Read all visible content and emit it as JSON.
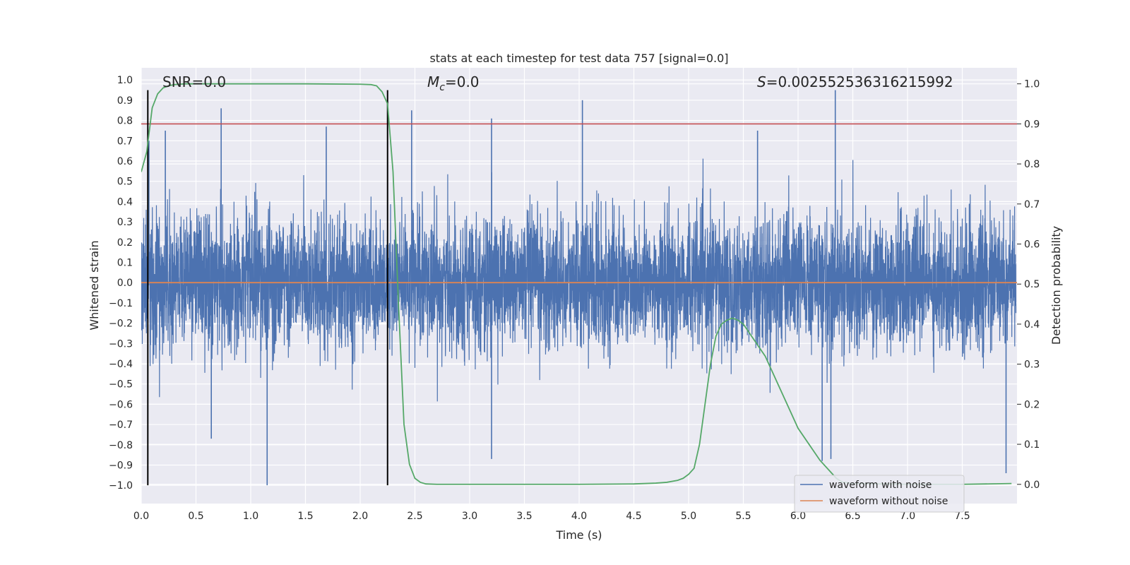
{
  "chart_data": {
    "type": "line",
    "title": "stats at each timestep for test data 757 [signal=0.0]",
    "xlabel": "Time (s)",
    "ylabel_left": "Whitened strain",
    "ylabel_right": "Detection probability",
    "xlim": [
      0.0,
      8.0
    ],
    "ylim_left": [
      -1.09,
      1.06
    ],
    "ylim_right": [
      -0.048,
      1.04
    ],
    "x_ticks": [
      "0.0",
      "0.5",
      "1.0",
      "1.5",
      "2.0",
      "2.5",
      "3.0",
      "3.5",
      "4.0",
      "4.5",
      "5.0",
      "5.5",
      "6.0",
      "6.5",
      "7.0",
      "7.5"
    ],
    "x_tick_values": [
      0.0,
      0.5,
      1.0,
      1.5,
      2.0,
      2.5,
      3.0,
      3.5,
      4.0,
      4.5,
      5.0,
      5.5,
      6.0,
      6.5,
      7.0,
      7.5
    ],
    "y_left_ticks": [
      "1.0",
      "0.9",
      "0.8",
      "0.7",
      "0.6",
      "0.5",
      "0.4",
      "0.3",
      "0.2",
      "0.1",
      "0.0",
      "−0.1",
      "−0.2",
      "−0.3",
      "−0.4",
      "−0.5",
      "−0.6",
      "−0.7",
      "−0.8",
      "−0.9",
      "−1.0"
    ],
    "y_left_tick_values": [
      1.0,
      0.9,
      0.8,
      0.7,
      0.6,
      0.5,
      0.4,
      0.3,
      0.2,
      0.1,
      0.0,
      -0.1,
      -0.2,
      -0.3,
      -0.4,
      -0.5,
      -0.6,
      -0.7,
      -0.8,
      -0.9,
      -1.0
    ],
    "y_right_ticks": [
      "1.0",
      "0.9",
      "0.8",
      "0.7",
      "0.6",
      "0.5",
      "0.4",
      "0.3",
      "0.2",
      "0.1",
      "0.0"
    ],
    "y_right_tick_values": [
      1.0,
      0.9,
      0.8,
      0.7,
      0.6,
      0.5,
      0.4,
      0.3,
      0.2,
      0.1,
      0.0
    ],
    "grid": true,
    "legend_position": "lower-right",
    "annotations": {
      "snr_text": "SNR=0.0",
      "mc_symbol": "M",
      "mc_sub": "c",
      "mc_value": "=0.0",
      "s_symbol": "S",
      "s_value": "=0.002552536316215992"
    },
    "series": [
      {
        "name": "waveform with noise",
        "color": "#4c72b0",
        "axis": "left",
        "kind": "noise",
        "notable_peaks": [
          {
            "x": 0.07,
            "y": 0.7
          },
          {
            "x": 0.22,
            "y": 0.75
          },
          {
            "x": 0.73,
            "y": 0.86
          },
          {
            "x": 1.69,
            "y": 0.77
          },
          {
            "x": 2.47,
            "y": 0.85
          },
          {
            "x": 3.2,
            "y": 0.81
          },
          {
            "x": 4.03,
            "y": 0.9
          },
          {
            "x": 5.63,
            "y": 0.75
          },
          {
            "x": 6.34,
            "y": 0.95
          },
          {
            "x": 1.15,
            "y": -1.0
          },
          {
            "x": 0.64,
            "y": -0.77
          },
          {
            "x": 3.2,
            "y": -0.87
          },
          {
            "x": 6.22,
            "y": -0.88
          },
          {
            "x": 6.3,
            "y": -0.87
          },
          {
            "x": 7.9,
            "y": -0.94
          }
        ]
      },
      {
        "name": "waveform without noise",
        "color": "#dd8452",
        "axis": "left",
        "x": [
          0.0,
          8.0
        ],
        "y": [
          0.0,
          0.0
        ]
      },
      {
        "color": "#55a868",
        "axis": "right",
        "x": [
          0.0,
          0.05,
          0.1,
          0.15,
          0.2,
          0.25,
          0.3,
          0.35,
          0.4,
          0.5,
          0.6,
          0.8,
          1.0,
          1.5,
          2.0,
          2.1,
          2.15,
          2.2,
          2.25,
          2.3,
          2.35,
          2.4,
          2.45,
          2.5,
          2.55,
          2.6,
          2.7,
          3.0,
          4.0,
          4.5,
          4.7,
          4.8,
          4.9,
          4.95,
          5.0,
          5.05,
          5.1,
          5.15,
          5.2,
          5.25,
          5.3,
          5.35,
          5.4,
          5.45,
          5.5,
          5.55,
          5.6,
          5.7,
          5.8,
          5.9,
          6.0,
          6.1,
          6.2,
          6.3,
          6.35,
          6.4,
          6.5,
          7.0,
          7.5,
          7.95
        ],
        "y": [
          0.78,
          0.83,
          0.94,
          0.975,
          0.99,
          0.995,
          0.998,
          0.999,
          1.0,
          1.0,
          1.0,
          1.0,
          1.0,
          1.0,
          0.999,
          0.998,
          0.995,
          0.98,
          0.95,
          0.78,
          0.45,
          0.15,
          0.05,
          0.015,
          0.005,
          0.001,
          0.0,
          0.0,
          0.0,
          0.001,
          0.003,
          0.005,
          0.01,
          0.015,
          0.025,
          0.04,
          0.1,
          0.2,
          0.3,
          0.37,
          0.4,
          0.41,
          0.415,
          0.41,
          0.4,
          0.38,
          0.36,
          0.32,
          0.26,
          0.2,
          0.14,
          0.1,
          0.06,
          0.03,
          0.015,
          0.006,
          0.002,
          0.0,
          0.0,
          0.002
        ]
      }
    ],
    "reference_lines": [
      {
        "type": "horizontal",
        "axis": "right",
        "y": 0.9,
        "color": "#c44e52"
      },
      {
        "type": "vertical",
        "x": 0.06,
        "color": "#000000"
      },
      {
        "type": "vertical",
        "x": 2.25,
        "color": "#000000"
      }
    ]
  }
}
